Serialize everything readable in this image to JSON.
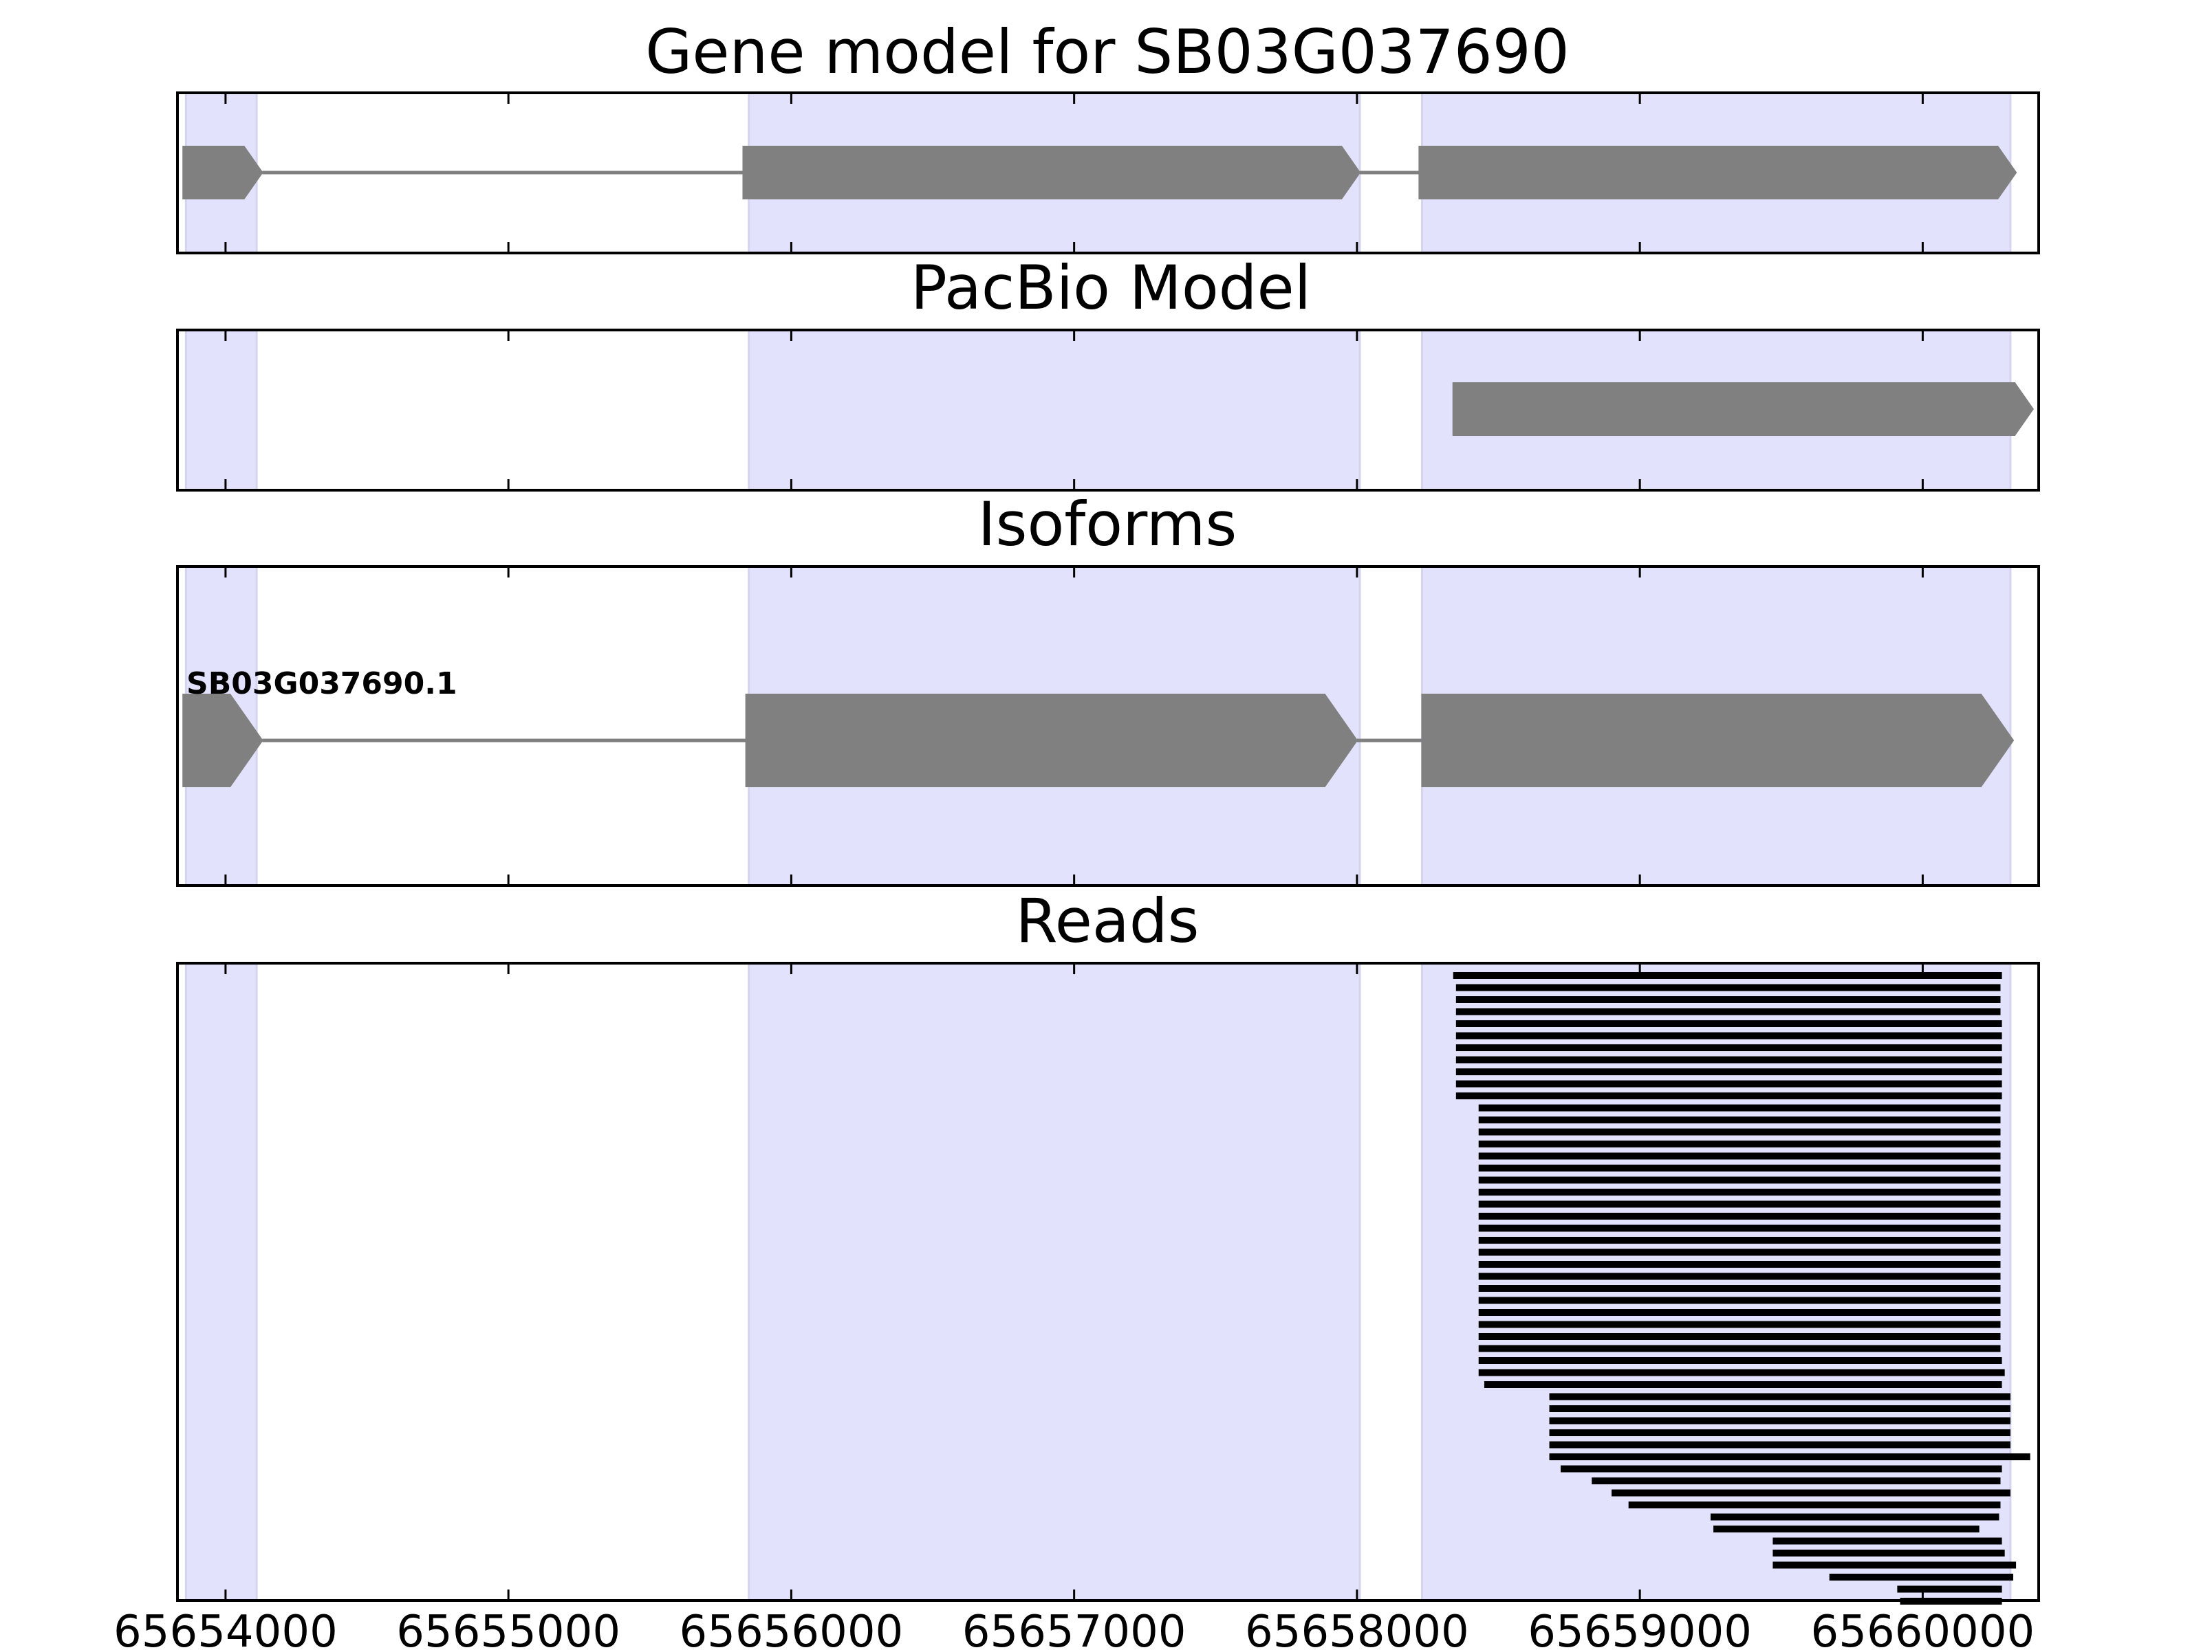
{
  "chart_data": {
    "type": "gene-track",
    "xlim": [
      65653830,
      65660410
    ],
    "xticks": [
      65654000,
      65655000,
      65656000,
      65657000,
      65658000,
      65659000,
      65660000
    ],
    "xtick_labels": [
      "65654000",
      "65655000",
      "65656000",
      "65657000",
      "65658000",
      "65659000",
      "65660000"
    ],
    "shaded_regions": [
      [
        65653860,
        65654110
      ],
      [
        65655850,
        65658010
      ],
      [
        65658230,
        65660310
      ]
    ],
    "colors": {
      "shade": "#e2e2fc",
      "shade_edge": "#d4d4ef",
      "feature": "#808080",
      "read": "#000000",
      "axes": "#000000"
    },
    "panels": [
      {
        "id": "gene-model",
        "title": "Gene model for SB03G037690",
        "features": [
          {
            "start": 65653850,
            "end": 65654130,
            "strand": "+"
          },
          {
            "start": 65655830,
            "end": 65658010,
            "strand": "+"
          },
          {
            "start": 65658220,
            "end": 65660330,
            "strand": "+"
          }
        ],
        "introns": [
          [
            65654130,
            65655830
          ],
          [
            65658010,
            65658220
          ]
        ]
      },
      {
        "id": "pacbio-model",
        "title": "PacBio Model",
        "features": [
          {
            "start": 65658340,
            "end": 65660390,
            "strand": "+"
          }
        ],
        "introns": []
      },
      {
        "id": "isoforms",
        "title": "Isoforms",
        "isoform_label": "SB03G037690.1",
        "features": [
          {
            "start": 65653850,
            "end": 65654130,
            "strand": "+"
          },
          {
            "start": 65655840,
            "end": 65658000,
            "strand": "+"
          },
          {
            "start": 65658230,
            "end": 65660320,
            "strand": "+"
          }
        ],
        "introns": [
          [
            65654130,
            65655840
          ],
          [
            65658000,
            65658230
          ]
        ]
      },
      {
        "id": "reads",
        "title": "Reads",
        "reads": [
          [
            65658340,
            65660280
          ],
          [
            65658350,
            65660275
          ],
          [
            65658350,
            65660275
          ],
          [
            65658350,
            65660275
          ],
          [
            65658350,
            65660280
          ],
          [
            65658350,
            65660280
          ],
          [
            65658350,
            65660280
          ],
          [
            65658350,
            65660280
          ],
          [
            65658350,
            65660280
          ],
          [
            65658350,
            65660280
          ],
          [
            65658350,
            65660280
          ],
          [
            65658430,
            65660275
          ],
          [
            65658430,
            65660275
          ],
          [
            65658430,
            65660275
          ],
          [
            65658430,
            65660275
          ],
          [
            65658430,
            65660275
          ],
          [
            65658430,
            65660275
          ],
          [
            65658430,
            65660275
          ],
          [
            65658430,
            65660275
          ],
          [
            65658430,
            65660275
          ],
          [
            65658430,
            65660275
          ],
          [
            65658430,
            65660275
          ],
          [
            65658430,
            65660275
          ],
          [
            65658430,
            65660275
          ],
          [
            65658430,
            65660275
          ],
          [
            65658430,
            65660275
          ],
          [
            65658430,
            65660275
          ],
          [
            65658430,
            65660275
          ],
          [
            65658430,
            65660275
          ],
          [
            65658430,
            65660275
          ],
          [
            65658430,
            65660275
          ],
          [
            65658430,
            65660275
          ],
          [
            65658430,
            65660280
          ],
          [
            65658430,
            65660290
          ],
          [
            65658450,
            65660280
          ],
          [
            65658680,
            65660310
          ],
          [
            65658680,
            65660310
          ],
          [
            65658680,
            65660310
          ],
          [
            65658680,
            65660310
          ],
          [
            65658680,
            65660310
          ],
          [
            65658680,
            65660380
          ],
          [
            65658720,
            65660280
          ],
          [
            65658830,
            65660275
          ],
          [
            65658900,
            65660310
          ],
          [
            65658960,
            65660275
          ],
          [
            65659250,
            65660270
          ],
          [
            65659260,
            65660200
          ],
          [
            65659470,
            65660280
          ],
          [
            65659470,
            65660290
          ],
          [
            65659470,
            65660330
          ],
          [
            65659670,
            65660320
          ],
          [
            65659910,
            65660280
          ],
          [
            65659920,
            65660280
          ]
        ]
      }
    ]
  }
}
